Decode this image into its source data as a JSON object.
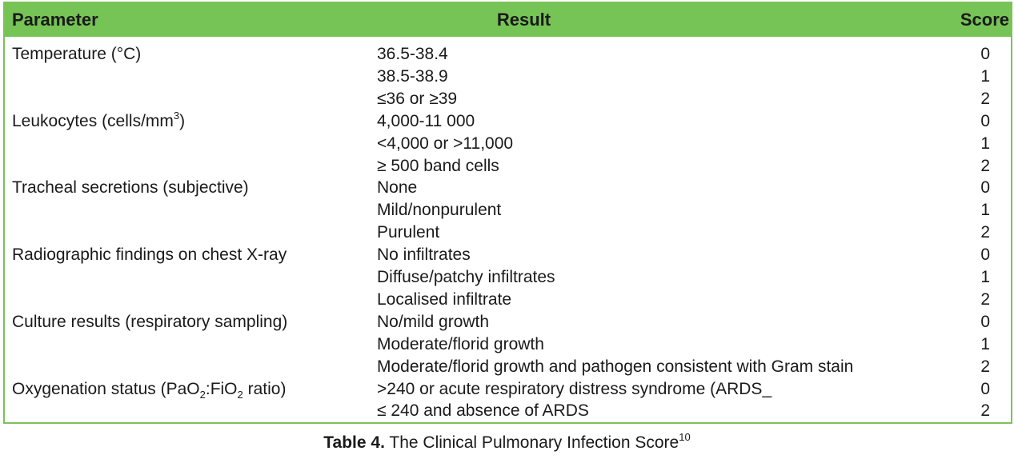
{
  "table": {
    "headers": {
      "parameter": "Parameter",
      "result": "Result",
      "score": "Score"
    },
    "rows": [
      {
        "parameter": "Temperature (°C)",
        "result": "36.5-38.4",
        "score": "0"
      },
      {
        "parameter": "",
        "result": "38.5-38.9",
        "score": "1"
      },
      {
        "parameter": "",
        "result": "≤36 or ≥39",
        "score": "2"
      },
      {
        "parameter": "Leukocytes (cells/mm3)",
        "result": "4,000-11 000",
        "score": "0"
      },
      {
        "parameter": "",
        "result": "<4,000 or >11,000",
        "score": "1"
      },
      {
        "parameter": "",
        "result": "≥ 500 band cells",
        "score": "2"
      },
      {
        "parameter": "Tracheal secretions (subjective)",
        "result": "None",
        "score": "0"
      },
      {
        "parameter": "",
        "result": "Mild/nonpurulent",
        "score": "1"
      },
      {
        "parameter": "",
        "result": "Purulent",
        "score": "2"
      },
      {
        "parameter": "Radiographic findings on chest X-ray",
        "result": "No infiltrates",
        "score": "0"
      },
      {
        "parameter": "",
        "result": "Diffuse/patchy infiltrates",
        "score": "1"
      },
      {
        "parameter": "",
        "result": "Localised infiltrate",
        "score": "2"
      },
      {
        "parameter": "Culture results (respiratory sampling)",
        "result": "No/mild growth",
        "score": "0"
      },
      {
        "parameter": "",
        "result": "Moderate/florid growth",
        "score": "1"
      },
      {
        "parameter": "",
        "result": "Moderate/florid growth and pathogen consistent with Gram stain",
        "score": "2"
      },
      {
        "parameter": "Oxygenation status (PaO2:FiO2 ratio)",
        "result": ">240 or acute respiratory distress syndrome (ARDS_",
        "score": "0"
      },
      {
        "parameter": "",
        "result": "≤ 240 and absence of ARDS",
        "score": "2"
      }
    ]
  },
  "caption": {
    "label": "Table 4.",
    "text": "The Clinical Pulmonary Infection Score",
    "ref": "10"
  },
  "colors": {
    "header_bg": "#76c356",
    "border": "#7bc35a"
  }
}
